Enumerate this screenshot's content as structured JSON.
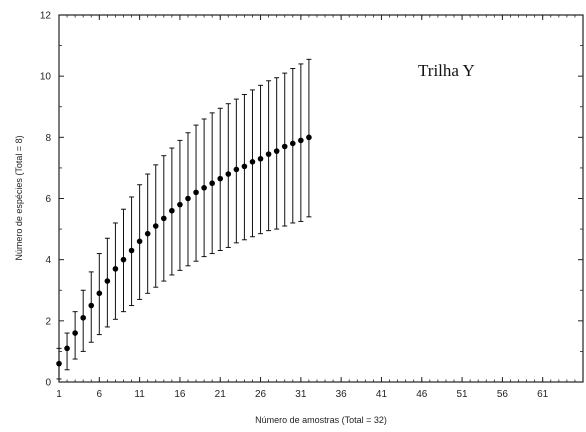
{
  "chart_data": {
    "type": "scatter",
    "annotation": "Trilha Y",
    "xlabel": "Número de amostras (Total = 32)",
    "ylabel": "Número de espécies (Total = 8)",
    "xlim": [
      1,
      66
    ],
    "ylim": [
      0,
      12
    ],
    "xticks": [
      1,
      6,
      11,
      16,
      21,
      26,
      31,
      36,
      41,
      46,
      51,
      56,
      61
    ],
    "yticks": [
      0,
      2,
      4,
      6,
      8,
      10,
      12
    ],
    "grid": false,
    "series": [
      {
        "x": [
          1,
          2,
          3,
          4,
          5,
          6,
          7,
          8,
          9,
          10,
          11,
          12,
          13,
          14,
          15,
          16,
          17,
          18,
          19,
          20,
          21,
          22,
          23,
          24,
          25,
          26,
          27,
          28,
          29,
          30,
          31,
          32
        ],
        "y": [
          0.6,
          1.1,
          1.6,
          2.1,
          2.5,
          2.9,
          3.3,
          3.7,
          4.0,
          4.3,
          4.6,
          4.85,
          5.1,
          5.35,
          5.6,
          5.8,
          6.0,
          6.2,
          6.35,
          6.5,
          6.65,
          6.8,
          6.95,
          7.05,
          7.2,
          7.3,
          7.45,
          7.55,
          7.7,
          7.8,
          7.9,
          8.0
        ],
        "y_lower": [
          0.1,
          0.4,
          0.75,
          1.0,
          1.3,
          1.55,
          1.8,
          2.05,
          2.3,
          2.5,
          2.7,
          2.9,
          3.1,
          3.3,
          3.5,
          3.65,
          3.8,
          3.95,
          4.1,
          4.2,
          4.3,
          4.4,
          4.55,
          4.65,
          4.75,
          4.85,
          4.95,
          5.0,
          5.1,
          5.2,
          5.25,
          5.4
        ],
        "y_upper": [
          1.1,
          1.6,
          2.3,
          3.0,
          3.6,
          4.2,
          4.7,
          5.2,
          5.65,
          6.05,
          6.45,
          6.8,
          7.1,
          7.4,
          7.65,
          7.9,
          8.15,
          8.4,
          8.6,
          8.8,
          8.95,
          9.1,
          9.25,
          9.4,
          9.55,
          9.7,
          9.85,
          9.95,
          10.1,
          10.25,
          10.4,
          10.55
        ]
      }
    ]
  }
}
